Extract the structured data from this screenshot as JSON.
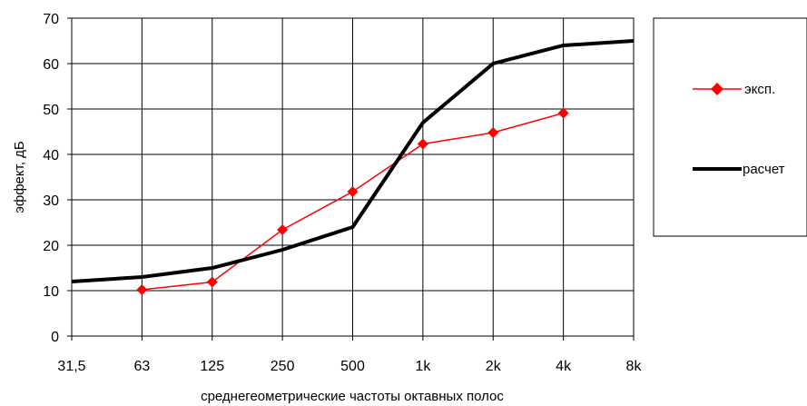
{
  "chart_data": {
    "type": "line",
    "categories": [
      "31,5",
      "63",
      "125",
      "250",
      "500",
      "1k",
      "2k",
      "4k",
      "8k"
    ],
    "xlabel": "среднегеометрические частоты октавных полос",
    "ylabel": "эффект, дБ",
    "ylim": [
      0,
      70
    ],
    "yticks": [
      "0",
      "10",
      "20",
      "30",
      "40",
      "50",
      "60",
      "70"
    ],
    "grid": true,
    "legend_position": "right",
    "series": [
      {
        "name": "эксп.",
        "color": "#ff0000",
        "marker": "diamond",
        "values": [
          null,
          10.2,
          11.9,
          23.4,
          31.8,
          42.3,
          44.8,
          49.1,
          null
        ]
      },
      {
        "name": "расчет",
        "color": "#000000",
        "marker": "none",
        "values": [
          12,
          13,
          15,
          19,
          24,
          47,
          60,
          64,
          65
        ]
      }
    ]
  }
}
